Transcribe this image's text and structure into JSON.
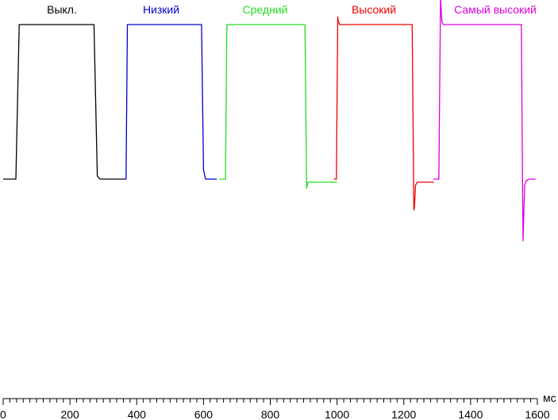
{
  "chart_data": {
    "type": "line",
    "xlabel": "мс",
    "xlim": [
      0,
      1600
    ],
    "x_ticks": [
      0,
      200,
      400,
      600,
      800,
      1000,
      1200,
      1400,
      1600
    ],
    "x_tick_labels": [
      "0",
      "200",
      "400",
      "600",
      "800",
      "1000",
      "1200",
      "1400",
      "1600"
    ],
    "ylim": [
      -0.4,
      1.02
    ],
    "grid": false,
    "series": [
      {
        "name": "Выкл.",
        "color": "#000000",
        "x": [
          0,
          38,
          48,
          272,
          282,
          290,
          362
        ],
        "y": [
          0,
          0,
          1,
          1,
          0.02,
          0,
          0
        ]
      },
      {
        "name": "Низкий",
        "color": "#0000cc",
        "x": [
          362,
          368,
          372,
          594,
          600,
          606,
          640
        ],
        "y": [
          0,
          0,
          1,
          1,
          0.06,
          0,
          0
        ]
      },
      {
        "name": "Средний",
        "color": "#22dd22",
        "x": [
          648,
          666,
          670,
          674,
          904,
          909,
          913,
          920,
          1000
        ],
        "y": [
          0,
          0,
          1,
          1,
          1,
          -0.06,
          -0.02,
          -0.02,
          -0.02
        ]
      },
      {
        "name": "Высокий",
        "color": "#ee0000",
        "x": [
          990,
          998,
          1002,
          1004,
          1008,
          1016,
          1225,
          1230,
          1232,
          1235,
          1240,
          1248,
          1290
        ],
        "y": [
          0,
          0,
          1.05,
          1.02,
          1,
          1,
          1,
          -0.2,
          -0.18,
          -0.04,
          -0.02,
          -0.02,
          -0.02
        ]
      },
      {
        "name": "Самый высокий",
        "color": "#dd00dd",
        "x": [
          1288,
          1305,
          1310,
          1314,
          1318,
          1325,
          1338,
          1552,
          1557,
          1562,
          1567,
          1575,
          1595
        ],
        "y": [
          0,
          0,
          1.18,
          1.02,
          1,
          1,
          1,
          1,
          -0.4,
          -0.04,
          -0.01,
          0,
          0
        ]
      }
    ]
  }
}
